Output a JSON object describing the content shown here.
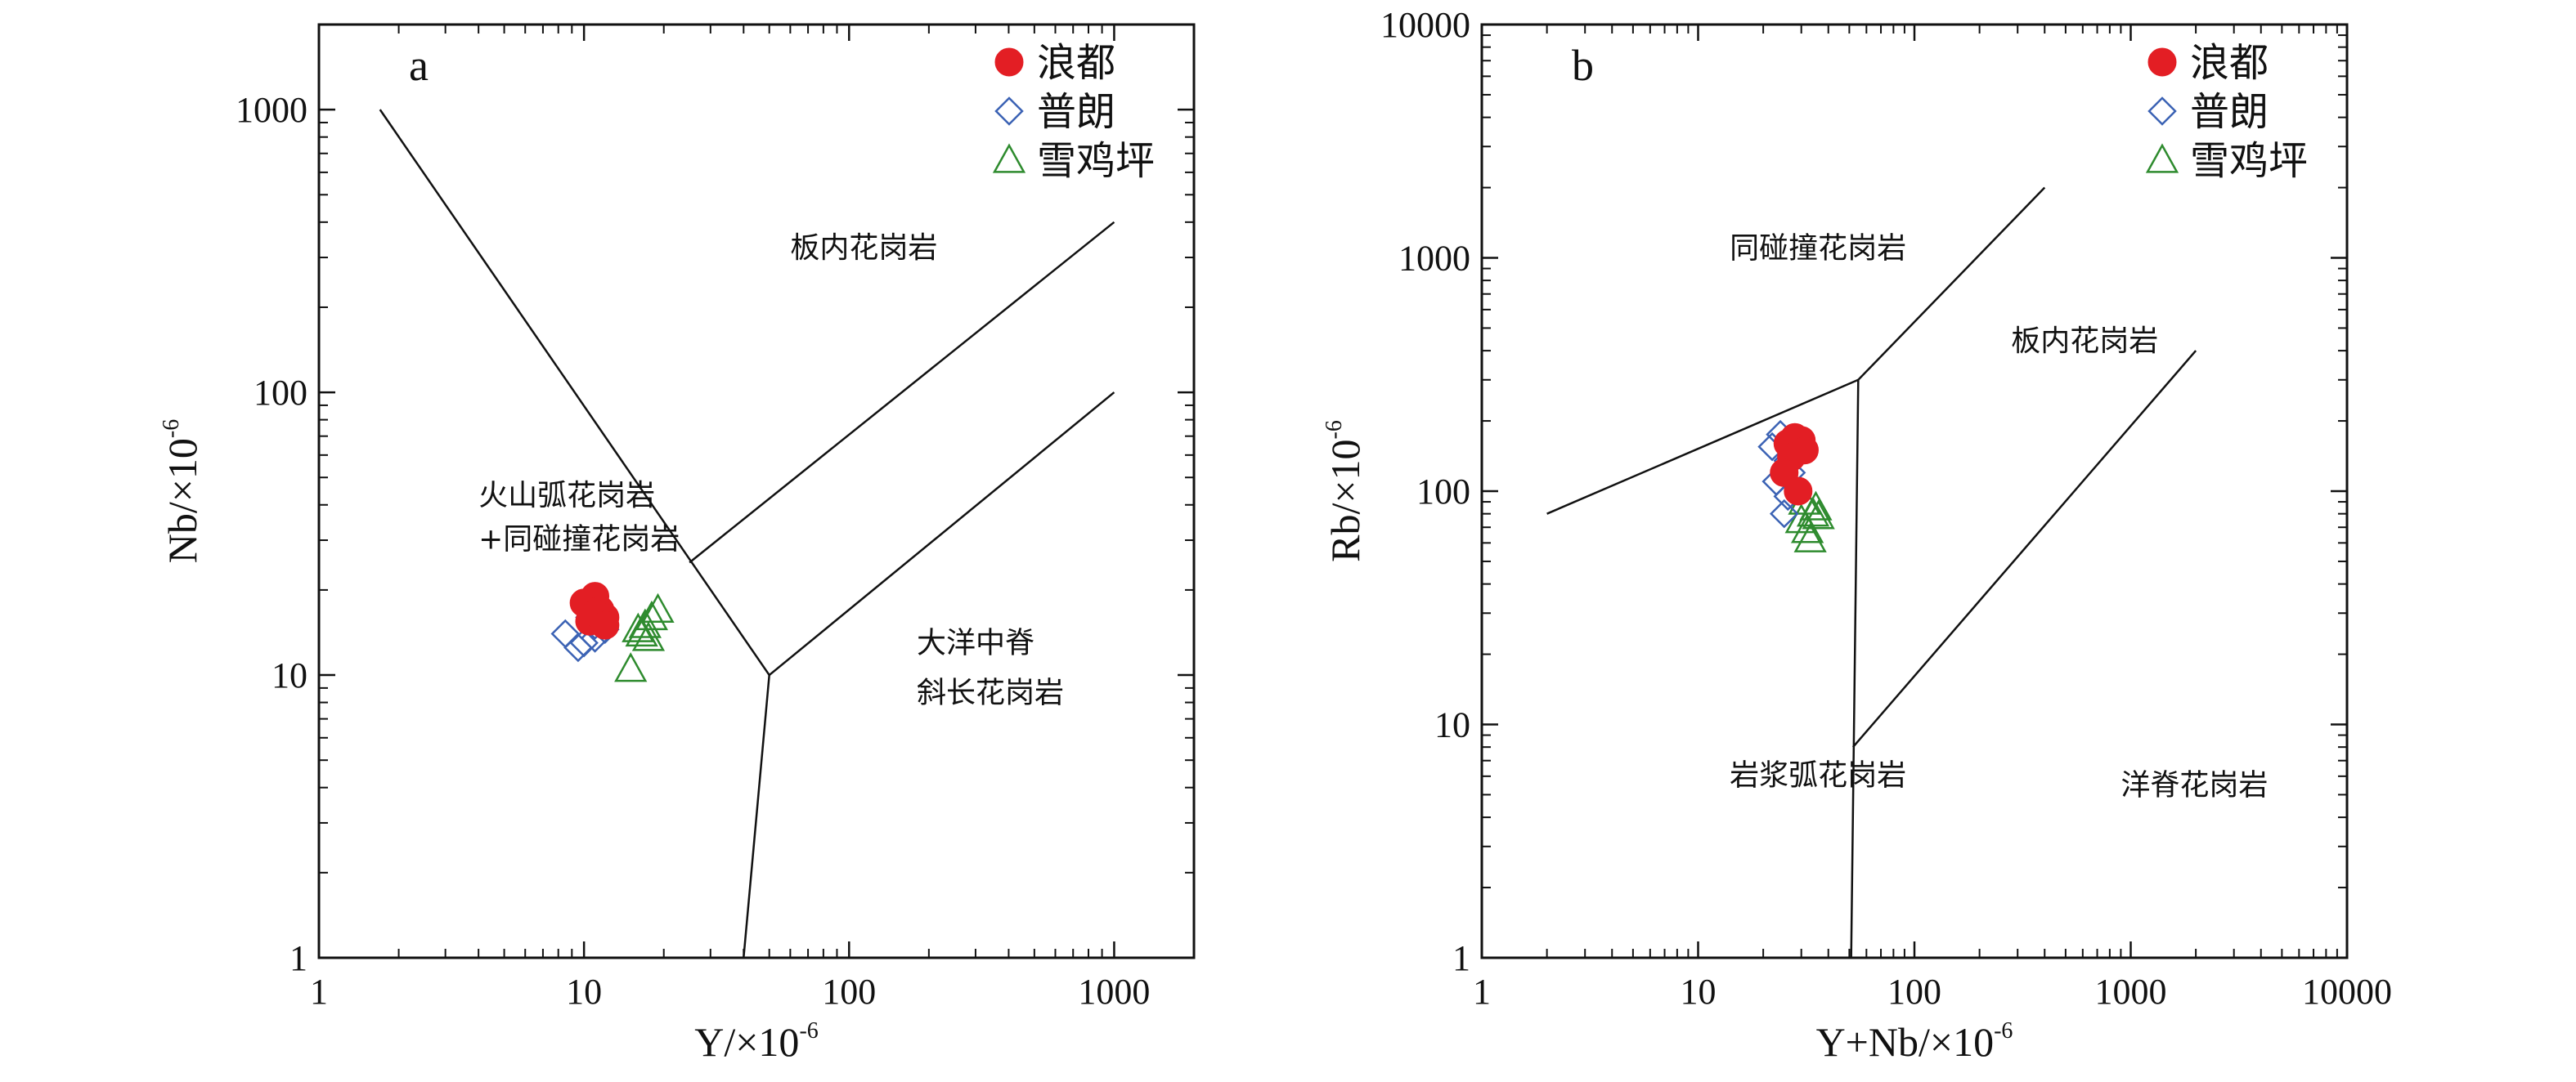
{
  "chart_data": [
    {
      "type": "scatter",
      "panel_label": "a",
      "xlabel": "Y/×10",
      "xlabel_sup": "-6",
      "ylabel": "Nb/×10",
      "ylabel_sup": "-6",
      "xscale": "log",
      "yscale": "log",
      "xlim": [
        1,
        2000
      ],
      "ylim": [
        1,
        2000
      ],
      "xticks": [
        1,
        10,
        100,
        1000
      ],
      "xtick_labels": [
        "1",
        "10",
        "100",
        "1000"
      ],
      "yticks": [
        1,
        10,
        100,
        1000
      ],
      "ytick_labels": [
        "1",
        "10",
        "100",
        "1000"
      ],
      "legend_position": "top-right",
      "series": [
        {
          "name": "浪都",
          "marker": "filled-circle",
          "color": "#e31e24",
          "x": [
            10,
            11,
            11.5,
            12,
            10.5,
            11,
            12
          ],
          "y": [
            18,
            19,
            17,
            16,
            15.5,
            16.5,
            15
          ]
        },
        {
          "name": "普朗",
          "marker": "diamond",
          "color": "#3b62b4",
          "x": [
            8.5,
            9.5,
            10,
            11,
            11.5,
            10.5,
            12,
            11
          ],
          "y": [
            14,
            12.5,
            13,
            15,
            15.5,
            16,
            14.5,
            13.5
          ]
        },
        {
          "name": "雪鸡坪",
          "marker": "triangle",
          "color": "#2e8b2e",
          "x": [
            15,
            16,
            17,
            18,
            19,
            17.5,
            16.5
          ],
          "y": [
            10.5,
            14.5,
            15,
            16,
            17,
            13.5,
            14
          ]
        }
      ],
      "boundaries": [
        {
          "x": [
            1.7,
            50
          ],
          "y": [
            1000,
            10
          ]
        },
        {
          "x": [
            50,
            1000
          ],
          "y": [
            10,
            100
          ]
        },
        {
          "x": [
            25,
            1000
          ],
          "y": [
            25,
            400
          ]
        },
        {
          "x": [
            50,
            40
          ],
          "y": [
            10,
            1
          ]
        }
      ],
      "region_labels": [
        {
          "text": "板内花岗岩",
          "x": 60,
          "y": 300
        },
        {
          "text": "火山弧花岗岩",
          "x": 4,
          "y": 40
        },
        {
          "text": "+同碰撞花岗岩",
          "x": 4,
          "y": 28
        },
        {
          "text": "大洋中脊",
          "x": 180,
          "y": 12
        },
        {
          "text": "斜长花岗岩",
          "x": 180,
          "y": 8
        }
      ]
    },
    {
      "type": "scatter",
      "panel_label": "b",
      "xlabel": "Y+Nb/×10",
      "xlabel_sup": "-6",
      "ylabel": "Rb/×10",
      "ylabel_sup": "-6",
      "xscale": "log",
      "yscale": "log",
      "xlim": [
        1,
        10000
      ],
      "ylim": [
        1,
        10000
      ],
      "xticks": [
        1,
        10,
        100,
        1000,
        10000
      ],
      "xtick_labels": [
        "1",
        "10",
        "100",
        "1000",
        "10000"
      ],
      "yticks": [
        1,
        10,
        100,
        1000,
        10000
      ],
      "ytick_labels": [
        "1",
        "10",
        "100",
        "1000",
        "10000"
      ],
      "legend_position": "top-right",
      "series": [
        {
          "name": "浪都",
          "marker": "filled-circle",
          "color": "#e31e24",
          "x": [
            26,
            28,
            30,
            27,
            25,
            29,
            31
          ],
          "y": [
            160,
            170,
            165,
            140,
            120,
            100,
            150
          ]
        },
        {
          "name": "普朗",
          "marker": "diamond",
          "color": "#3b62b4",
          "x": [
            22,
            24,
            26,
            27,
            23,
            25,
            26,
            28
          ],
          "y": [
            155,
            175,
            135,
            120,
            110,
            80,
            95,
            145
          ]
        },
        {
          "name": "雪鸡坪",
          "marker": "triangle",
          "color": "#2e8b2e",
          "x": [
            30,
            32,
            34,
            33,
            31,
            36,
            35
          ],
          "y": [
            75,
            68,
            80,
            62,
            90,
            78,
            85
          ]
        }
      ],
      "boundaries": [
        {
          "x": [
            2,
            55
          ],
          "y": [
            80,
            300
          ]
        },
        {
          "x": [
            55,
            400
          ],
          "y": [
            300,
            2000
          ]
        },
        {
          "x": [
            55,
            51
          ],
          "y": [
            300,
            1
          ]
        },
        {
          "x": [
            52,
            2000
          ],
          "y": [
            8,
            400
          ]
        }
      ],
      "region_labels": [
        {
          "text": "同碰撞花岗岩",
          "x": 14,
          "y": 1000
        },
        {
          "text": "板内花岗岩",
          "x": 280,
          "y": 400
        },
        {
          "text": "岩浆弧花岗岩",
          "x": 14,
          "y": 5.5
        },
        {
          "text": "洋脊花岗岩",
          "x": 900,
          "y": 5
        }
      ]
    }
  ]
}
